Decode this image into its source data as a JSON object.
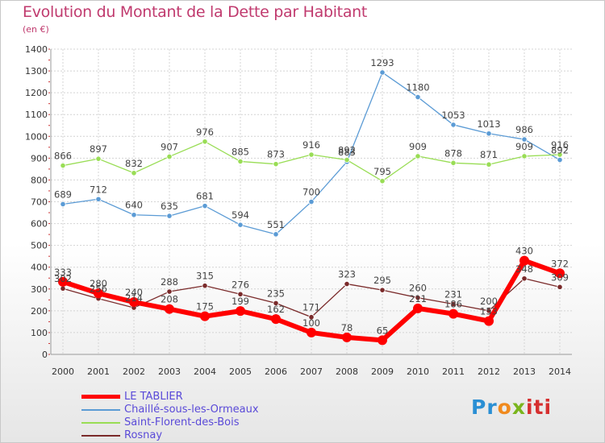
{
  "header": {
    "title": "Evolution du Montant de la Dette par Habitant",
    "unit": "(en €)"
  },
  "colors": {
    "title": "#c03a6e",
    "legend_text": "#5a4ad8",
    "grid": "#d4d4d4",
    "axis": "#999999"
  },
  "chart_data": {
    "type": "line",
    "title": "Evolution du Montant de la Dette par Habitant",
    "ylabel": "(en €)",
    "xlabel": "",
    "x": [
      2000,
      2001,
      2002,
      2003,
      2004,
      2005,
      2006,
      2007,
      2008,
      2009,
      2010,
      2011,
      2012,
      2013,
      2014
    ],
    "ylim": [
      0,
      1400
    ],
    "yticks": [
      0,
      100,
      200,
      300,
      400,
      500,
      600,
      700,
      800,
      900,
      1000,
      1100,
      1200,
      1300,
      1400
    ],
    "grid": true,
    "legend_position": "bottom-left",
    "series": [
      {
        "name": "LE TABLIER",
        "color": "#ff0000",
        "values": [
          333,
          280,
          240,
          208,
          175,
          199,
          162,
          100,
          78,
          65,
          211,
          186,
          153,
          430,
          372
        ],
        "labels": [
          "333",
          "280",
          "240",
          "208",
          "175",
          "199",
          "162",
          "100",
          "78",
          "65",
          "211",
          "186",
          "153",
          "430",
          "372"
        ]
      },
      {
        "name": "Chaillé-sous-les-Ormeaux",
        "color": "#5b9bd5",
        "values": [
          689,
          712,
          640,
          635,
          681,
          594,
          551,
          700,
          883,
          1293,
          1180,
          1053,
          1013,
          986,
          892
        ],
        "labels": [
          "689",
          "712",
          "640",
          "635",
          "681",
          "594",
          "551",
          "700",
          "883",
          "1293",
          "1180",
          "1053",
          "1013",
          "986",
          "892"
        ]
      },
      {
        "name": "Saint-Florent-des-Bois",
        "color": "#99dd55",
        "values": [
          866,
          897,
          832,
          907,
          976,
          885,
          873,
          916,
          892,
          795,
          909,
          878,
          871,
          909,
          916
        ],
        "labels": [
          "866",
          "897",
          "832",
          "907",
          "976",
          "885",
          "873",
          "916",
          "892",
          "795",
          "909",
          "878",
          "871",
          "909",
          "916"
        ]
      },
      {
        "name": "Rosnay",
        "color": "#7a2a2a",
        "values": [
          302,
          256,
          214,
          288,
          315,
          276,
          235,
          171,
          323,
          295,
          260,
          231,
          200,
          348,
          309
        ],
        "labels": [
          "302",
          "256",
          "214",
          "288",
          "315",
          "276",
          "235",
          "171",
          "323",
          "295",
          "260",
          "231",
          "200",
          "348",
          "309"
        ]
      }
    ]
  },
  "logo": {
    "parts": [
      "Pr",
      "o",
      "x",
      "iti"
    ]
  }
}
